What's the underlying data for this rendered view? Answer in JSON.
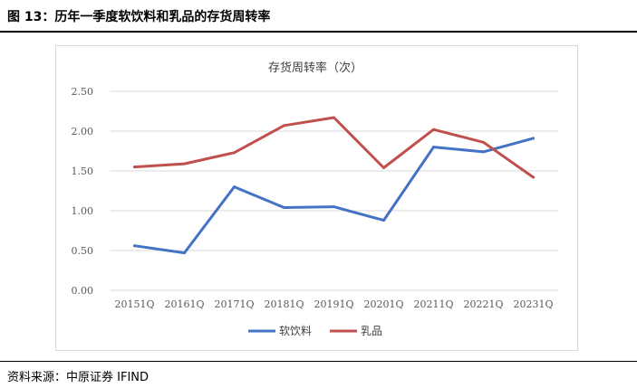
{
  "page": {
    "figure_title": "图 13：历年一季度软饮料和乳品的存货周转率",
    "source": "资料来源：中原证券  IFIND"
  },
  "chart_data": {
    "type": "line",
    "title": "存货周转率（次）",
    "xlabel": "",
    "ylabel": "",
    "categories": [
      "20151Q",
      "20161Q",
      "20171Q",
      "20181Q",
      "20191Q",
      "20201Q",
      "20211Q",
      "20221Q",
      "20231Q"
    ],
    "yticks": [
      "0.00",
      "0.50",
      "1.00",
      "1.50",
      "2.00",
      "2.50"
    ],
    "ylim": [
      0,
      2.5
    ],
    "grid": true,
    "legend_position": "bottom",
    "series": [
      {
        "name": "软饮料",
        "color": "#4472c4",
        "values": [
          0.56,
          0.47,
          1.3,
          1.04,
          1.05,
          0.88,
          1.8,
          1.74,
          1.91
        ]
      },
      {
        "name": "乳品",
        "color": "#c0504d",
        "values": [
          1.55,
          1.59,
          1.73,
          2.07,
          2.17,
          1.54,
          2.02,
          1.86,
          1.42
        ]
      }
    ]
  }
}
